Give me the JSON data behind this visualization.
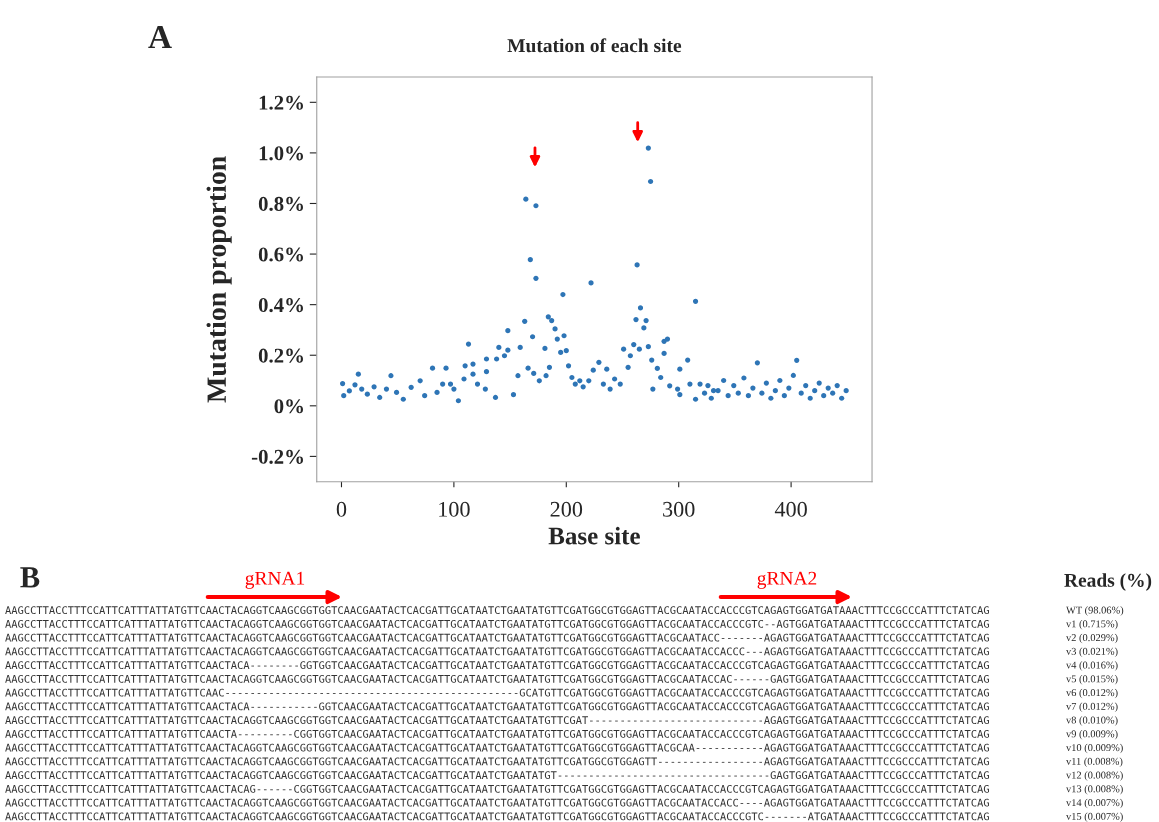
{
  "chart_data": [
    {
      "type": "scatter",
      "title": "Mutation of each site",
      "xlabel": "Base site",
      "ylabel": "Mutation proportion",
      "annotations": [
        "A"
      ],
      "x": [
        1,
        2,
        7,
        12,
        15,
        18,
        23,
        29,
        34,
        40,
        44,
        49,
        55,
        62,
        70,
        74,
        81,
        85,
        90,
        93,
        100,
        104,
        97,
        109,
        113,
        110,
        117,
        117,
        121,
        128,
        129,
        129,
        137,
        138,
        140,
        145,
        148,
        148,
        153,
        157,
        159,
        163,
        164,
        166,
        168,
        170,
        173,
        173,
        171,
        176,
        181,
        182,
        184,
        187,
        185,
        190,
        192,
        195,
        197,
        198,
        200,
        202,
        205,
        208,
        212,
        215,
        220,
        222,
        224,
        229,
        233,
        236,
        239,
        243,
        248,
        251,
        255,
        257,
        260,
        262,
        263,
        265,
        266,
        269,
        271,
        273,
        275,
        273,
        276,
        277,
        281,
        284,
        287,
        287,
        290,
        292,
        299,
        301,
        301,
        308,
        310,
        315,
        315,
        319,
        323,
        326,
        329,
        331,
        335,
        340,
        344,
        349,
        353,
        358,
        362,
        366,
        370,
        374,
        378,
        382,
        386,
        390,
        394,
        398,
        402,
        405,
        409,
        413,
        417,
        421,
        425,
        429,
        433,
        437,
        441,
        445,
        449
      ],
      "series": [
        {
          "color": "#2e75b6",
          "values": [
            0.088,
            0.04,
            0.059,
            0.083,
            0.125,
            0.066,
            0.046,
            0.075,
            0.033,
            0.066,
            0.119,
            0.053,
            0.026,
            0.073,
            0.099,
            0.04,
            0.149,
            0.053,
            0.086,
            0.149,
            0.066,
            0.02,
            0.086,
            0.106,
            0.244,
            0.158,
            0.165,
            0.125,
            0.086,
            0.066,
            0.135,
            0.185,
            0.033,
            0.185,
            0.231,
            0.198,
            0.297,
            0.22,
            0.044,
            0.119,
            0.231,
            0.334,
            0.817,
            0.149,
            0.578,
            0.273,
            0.791,
            0.504,
            0.128,
            0.099,
            0.227,
            0.119,
            0.352,
            0.337,
            0.152,
            0.304,
            0.264,
            0.211,
            0.44,
            0.277,
            0.218,
            0.158,
            0.112,
            0.086,
            0.099,
            0.075,
            0.099,
            0.486,
            0.141,
            0.172,
            0.086,
            0.145,
            0.066,
            0.106,
            0.086,
            0.224,
            0.152,
            0.198,
            0.242,
            0.341,
            0.557,
            0.224,
            0.387,
            0.308,
            0.337,
            1.019,
            0.887,
            0.234,
            0.181,
            0.066,
            0.148,
            0.112,
            0.255,
            0.207,
            0.264,
            0.079,
            0.066,
            0.145,
            0.044,
            0.181,
            0.086,
            0.413,
            0.026,
            0.086,
            0.05,
            0.08,
            0.03,
            0.06,
            0.06,
            0.1,
            0.04,
            0.08,
            0.05,
            0.11,
            0.04,
            0.07,
            0.17,
            0.05,
            0.09,
            0.03,
            0.06,
            0.1,
            0.04,
            0.07,
            0.12,
            0.18,
            0.05,
            0.08,
            0.03,
            0.06,
            0.09,
            0.04,
            0.07,
            0.05,
            0.08,
            0.03,
            0.06
          ]
        }
      ],
      "marker": "circle",
      "grid": false,
      "legend": false,
      "xlim": [
        -22,
        472
      ],
      "xticks": [
        0,
        100,
        200,
        300,
        400
      ],
      "ylim": [
        -0.3,
        1.3
      ],
      "yticks": [
        {
          "value": -0.2,
          "label": "-0.2%"
        },
        {
          "value": 0,
          "label": "0%"
        },
        {
          "value": 0.2,
          "label": "0.2%"
        },
        {
          "value": 0.4,
          "label": "0.4%"
        },
        {
          "value": 0.6,
          "label": "0.6%"
        },
        {
          "value": 0.8,
          "label": "0.8%"
        },
        {
          "value": 1.0,
          "label": "1.0%"
        },
        {
          "value": 1.2,
          "label": "1.2%"
        }
      ]
    },
    {
      "type": "other",
      "annotations": [
        "B",
        "gRNA1",
        "gRNA2",
        "Reads (%)",
        "AAGCCTTACCTTTCCATTCATTTATTATGTTCAACTACAGGTCAAGCGGTGGTCAACGAATACTCACGATTGCATAATCTGAATATGTTCGATGGCGTGGAGTTACGCAATACCACCCGTCAGAGTGGATGATAAACTTTCCGCCCATTTCTATCAG",
        "AAGCCTTACCTTTCCATTCATTTATTATGTTCAACTACAGGTCAAGCGGTGGTCAACGAATACTCACGATTGCATAATCTGAATATGTTCGATGGCGTGGAGTTACGCAATACCACCCGTC--AGTGGATGATAAACTTTCCGCCCATTTCTATCAG",
        "AAGCCTTACCTTTCCATTCATTTATTATGTTCAACTACAGGTCAAGCGGTGGTCAACGAATACTCACGATTGCATAATCTGAATATGTTCGATGGCGTGGAGTTACGCAATACC-------AGAGTGGATGATAAACTTTCCGCCCATTTCTATCAG",
        "AAGCCTTACCTTTCCATTCATTTATTATGTTCAACTACAGGTCAAGCGGTGGTCAACGAATACTCACGATTGCATAATCTGAATATGTTCGATGGCGTGGAGTTACGCAATACCACCC---AGAGTGGATGATAAACTTTCCGCCCATTTCTATCAG",
        "AAGCCTTACCTTTCCATTCATTTATTATGTTCAACTACA--------GGTGGTCAACGAATACTCACGATTGCATAATCTGAATATGTTCGATGGCGTGGAGTTACGCAATACCACCCGTCAGAGTGGATGATAAACTTTCCGCCCATTTCTATCAG",
        "AAGCCTTACCTTTCCATTCATTTATTATGTTCAACTACAGGTCAAGCGGTGGTCAACGAATACTCACGATTGCATAATCTGAATATGTTCGATGGCGTGGAGTTACGCAATACCAC------GAGTGGATGATAAACTTTCCGCCCATTTCTATCAG",
        "AAGCCTTACCTTTCCATTCATTTATTATGTTCAAC-----------------------------------------------GCATGTTCGATGGCGTGGAGTTACGCAATACCACCCGTCAGAGTGGATGATAAACTTTCCGCCCATTTCTATCAG",
        "AAGCCTTACCTTTCCATTCATTTATTATGTTCAACTACA-----------GGTCAACGAATACTCACGATTGCATAATCTGAATATGTTCGATGGCGTGGAGTTACGCAATACCACCCGTCAGAGTGGATGATAAACTTTCCGCCCATTTCTATCAG",
        "AAGCCTTACCTTTCCATTCATTTATTATGTTCAACTACAGGTCAAGCGGTGGTCAACGAATACTCACGATTGCATAATCTGAATATGTTCGAT----------------------------AGAGTGGATGATAAACTTTCCGCCCATTTCTATCAG",
        "AAGCCTTACCTTTCCATTCATTTATTATGTTCAACTA---------CGGTGGTCAACGAATACTCACGATTGCATAATCTGAATATGTTCGATGGCGTGGAGTTACGCAATACCACCCGTCAGAGTGGATGATAAACTTTCCGCCCATTTCTATCAG",
        "AAGCCTTACCTTTCCATTCATTTATTATGTTCAACTACAGGTCAAGCGGTGGTCAACGAATACTCACGATTGCATAATCTGAATATGTTCGATGGCGTGGAGTTACGCAA-----------AGAGTGGATGATAAACTTTCCGCCCATTTCTATCAG",
        "AAGCCTTACCTTTCCATTCATTTATTATGTTCAACTACAGGTCAAGCGGTGGTCAACGAATACTCACGATTGCATAATCTGAATATGTTCGATGGCGTGGAGTT-----------------AGAGTGGATGATAAACTTTCCGCCCATTTCTATCAG",
        "AAGCCTTACCTTTCCATTCATTTATTATGTTCAACTACAGGTCAAGCGGTGGTCAACGAATACTCACGATTGCATAATCTGAATATGT----------------------------------GAGTGGATGATAAACTTTCCGCCCATTTCTATCAG",
        "AAGCCTTACCTTTCCATTCATTTATTATGTTCAACTACAG------CGGTGGTCAACGAATACTCACGATTGCATAATCTGAATATGTTCGATGGCGTGGAGTTACGCAATACCACCCGTCAGAGTGGATGATAAACTTTCCGCCCATTTCTATCAG",
        "AAGCCTTACCTTTCCATTCATTTATTATGTTCAACTACAGGTCAAGCGGTGGTCAACGAATACTCACGATTGCATAATCTGAATATGTTCGATGGCGTGGAGTTACGCAATACCACC----AGAGTGGATGATAAACTTTCCGCCCATTTCTATCAG",
        "AAGCCTTACCTTTCCATTCATTTATTATGTTCAACTACAGGTCAAGCGGTGGTCAACGAATACTCACGATTGCATAATCTGAATATGTTCGATGGCGTGGAGTTACGCAATACCACCCGTC-------ATGATAAACTTTCCGCCCATTTCTATCAG",
        "WT (98.06%)",
        "v1 (0.715%)",
        "v2 (0.029%)",
        "v3 (0.021%)",
        "v4 (0.016%)",
        "v5 (0.015%)",
        "v6 (0.012%)",
        "v7 (0.012%)",
        "v8 (0.010%)",
        "v9 (0.009%)",
        "v10 (0.009%)",
        "v11 (0.008%)",
        "v12 (0.008%)",
        "v13 (0.008%)",
        "v14 (0.007%)",
        "v15 (0.007%)"
      ]
    }
  ]
}
